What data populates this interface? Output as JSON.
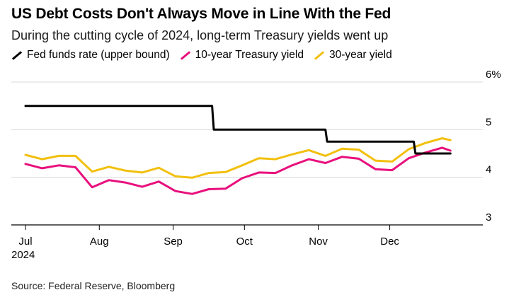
{
  "header": {
    "title": "US Debt Costs Don't Always Move in Line With the Fed",
    "subtitle": "During the cutting cycle of 2024, long-term Treasury yields went up"
  },
  "footer": {
    "source": "Source: Federal Reserve, Bloomberg"
  },
  "chart_data": {
    "type": "line",
    "title": "US Debt Costs Don't Always Move in Line With the Fed",
    "subtitle": "During the cutting cycle of 2024, long-term Treasury yields went up",
    "xlabel": "",
    "ylabel": "",
    "ylim": [
      3,
      6
    ],
    "y_ticks": [
      3,
      4,
      5,
      6
    ],
    "y_tick_labels": [
      "3",
      "4",
      "5",
      "6%"
    ],
    "x_range_weeks": [
      0,
      28.5
    ],
    "x_ticks": [
      {
        "week": 0,
        "label": "Jul",
        "sublabel": "2024"
      },
      {
        "week": 4.43,
        "label": "Aug",
        "sublabel": ""
      },
      {
        "week": 8.86,
        "label": "Sep",
        "sublabel": ""
      },
      {
        "week": 13.14,
        "label": "Oct",
        "sublabel": ""
      },
      {
        "week": 17.57,
        "label": "Nov",
        "sublabel": ""
      },
      {
        "week": 21.86,
        "label": "Dec",
        "sublabel": ""
      }
    ],
    "grid": true,
    "legend_position": "top-left",
    "series": [
      {
        "name": "Fed funds rate (upper bound)",
        "color": "#000000",
        "step": true,
        "points": [
          [
            0,
            5.5
          ],
          [
            11.0,
            5.5
          ],
          [
            11.2,
            5.5
          ],
          [
            11.3,
            5.0
          ],
          [
            17.57,
            5.0
          ],
          [
            18.0,
            5.0
          ],
          [
            18.1,
            4.75
          ],
          [
            23.1,
            4.75
          ],
          [
            23.3,
            4.75
          ],
          [
            23.4,
            4.5
          ],
          [
            25.5,
            4.5
          ]
        ]
      },
      {
        "name": "10-year Treasury yield",
        "color": "#e8107d",
        "points": [
          [
            0,
            4.28
          ],
          [
            1,
            4.19
          ],
          [
            2,
            4.25
          ],
          [
            3,
            4.21
          ],
          [
            4,
            3.79
          ],
          [
            5,
            3.94
          ],
          [
            6,
            3.89
          ],
          [
            7,
            3.8
          ],
          [
            8,
            3.91
          ],
          [
            9,
            3.71
          ],
          [
            10,
            3.65
          ],
          [
            11,
            3.75
          ],
          [
            12,
            3.76
          ],
          [
            13,
            3.98
          ],
          [
            14,
            4.1
          ],
          [
            15,
            4.09
          ],
          [
            16,
            4.25
          ],
          [
            17,
            4.38
          ],
          [
            18,
            4.3
          ],
          [
            19,
            4.43
          ],
          [
            20,
            4.39
          ],
          [
            21,
            4.17
          ],
          [
            22,
            4.15
          ],
          [
            23,
            4.4
          ],
          [
            24,
            4.52
          ],
          [
            25,
            4.62
          ],
          [
            25.5,
            4.56
          ]
        ]
      },
      {
        "name": "30-year yield",
        "color": "#f2c00e",
        "points": [
          [
            0,
            4.47
          ],
          [
            1,
            4.38
          ],
          [
            2,
            4.45
          ],
          [
            3,
            4.45
          ],
          [
            4,
            4.12
          ],
          [
            5,
            4.22
          ],
          [
            6,
            4.14
          ],
          [
            7,
            4.1
          ],
          [
            8,
            4.2
          ],
          [
            9,
            4.02
          ],
          [
            10,
            3.99
          ],
          [
            11,
            4.09
          ],
          [
            12,
            4.11
          ],
          [
            13,
            4.25
          ],
          [
            14,
            4.4
          ],
          [
            15,
            4.38
          ],
          [
            16,
            4.48
          ],
          [
            17,
            4.57
          ],
          [
            18,
            4.45
          ],
          [
            19,
            4.6
          ],
          [
            20,
            4.58
          ],
          [
            21,
            4.35
          ],
          [
            22,
            4.33
          ],
          [
            23,
            4.59
          ],
          [
            24,
            4.72
          ],
          [
            25,
            4.82
          ],
          [
            25.5,
            4.78
          ]
        ]
      }
    ]
  }
}
